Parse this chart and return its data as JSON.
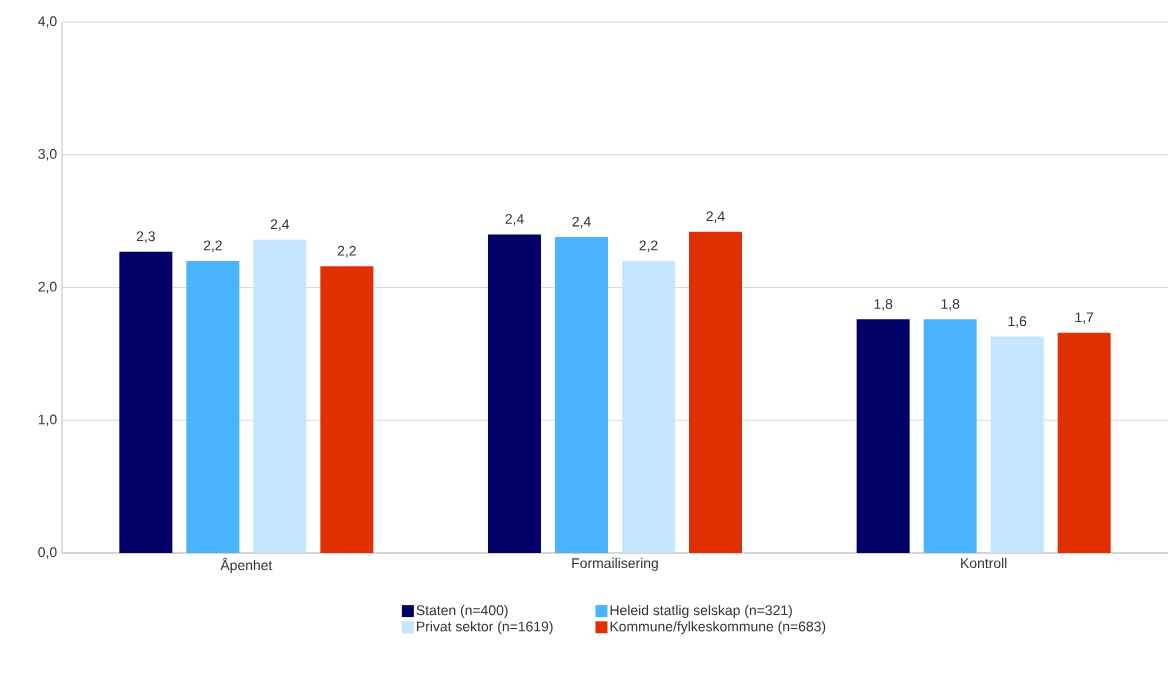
{
  "chart_data": {
    "type": "bar",
    "categories": [
      "Åpenhet",
      "Formailisering",
      "Kontroll"
    ],
    "series": [
      {
        "name": "Staten (n=400)",
        "color": "#000066",
        "values": [
          2.27,
          2.4,
          1.76
        ],
        "value_labels": [
          "2,3",
          "2,4",
          "1,8"
        ]
      },
      {
        "name": "Heleid statlig selskap (n=321)",
        "color": "#4ab4ff",
        "values": [
          2.2,
          2.38,
          1.76
        ],
        "value_labels": [
          "2,2",
          "2,4",
          "1,8"
        ]
      },
      {
        "name": "Privat sektor (n=1619)",
        "color": "#c5e6ff",
        "values": [
          2.36,
          2.2,
          1.63
        ],
        "value_labels": [
          "2,4",
          "2,2",
          "1,6"
        ]
      },
      {
        "name": "Kommune/fylkeskommune (n=683)",
        "color": "#e03000",
        "values": [
          2.16,
          2.42,
          1.66
        ],
        "value_labels": [
          "2,2",
          "2,4",
          "1,7"
        ]
      }
    ],
    "ylim": [
      0,
      4
    ],
    "yticks": [
      {
        "value": 0,
        "label": "0,0"
      },
      {
        "value": 1,
        "label": "1,0"
      },
      {
        "value": 2,
        "label": "2,0"
      },
      {
        "value": 3,
        "label": "3,0"
      },
      {
        "value": 4,
        "label": "4,0"
      }
    ],
    "grid": "y",
    "legend": "bottom"
  }
}
